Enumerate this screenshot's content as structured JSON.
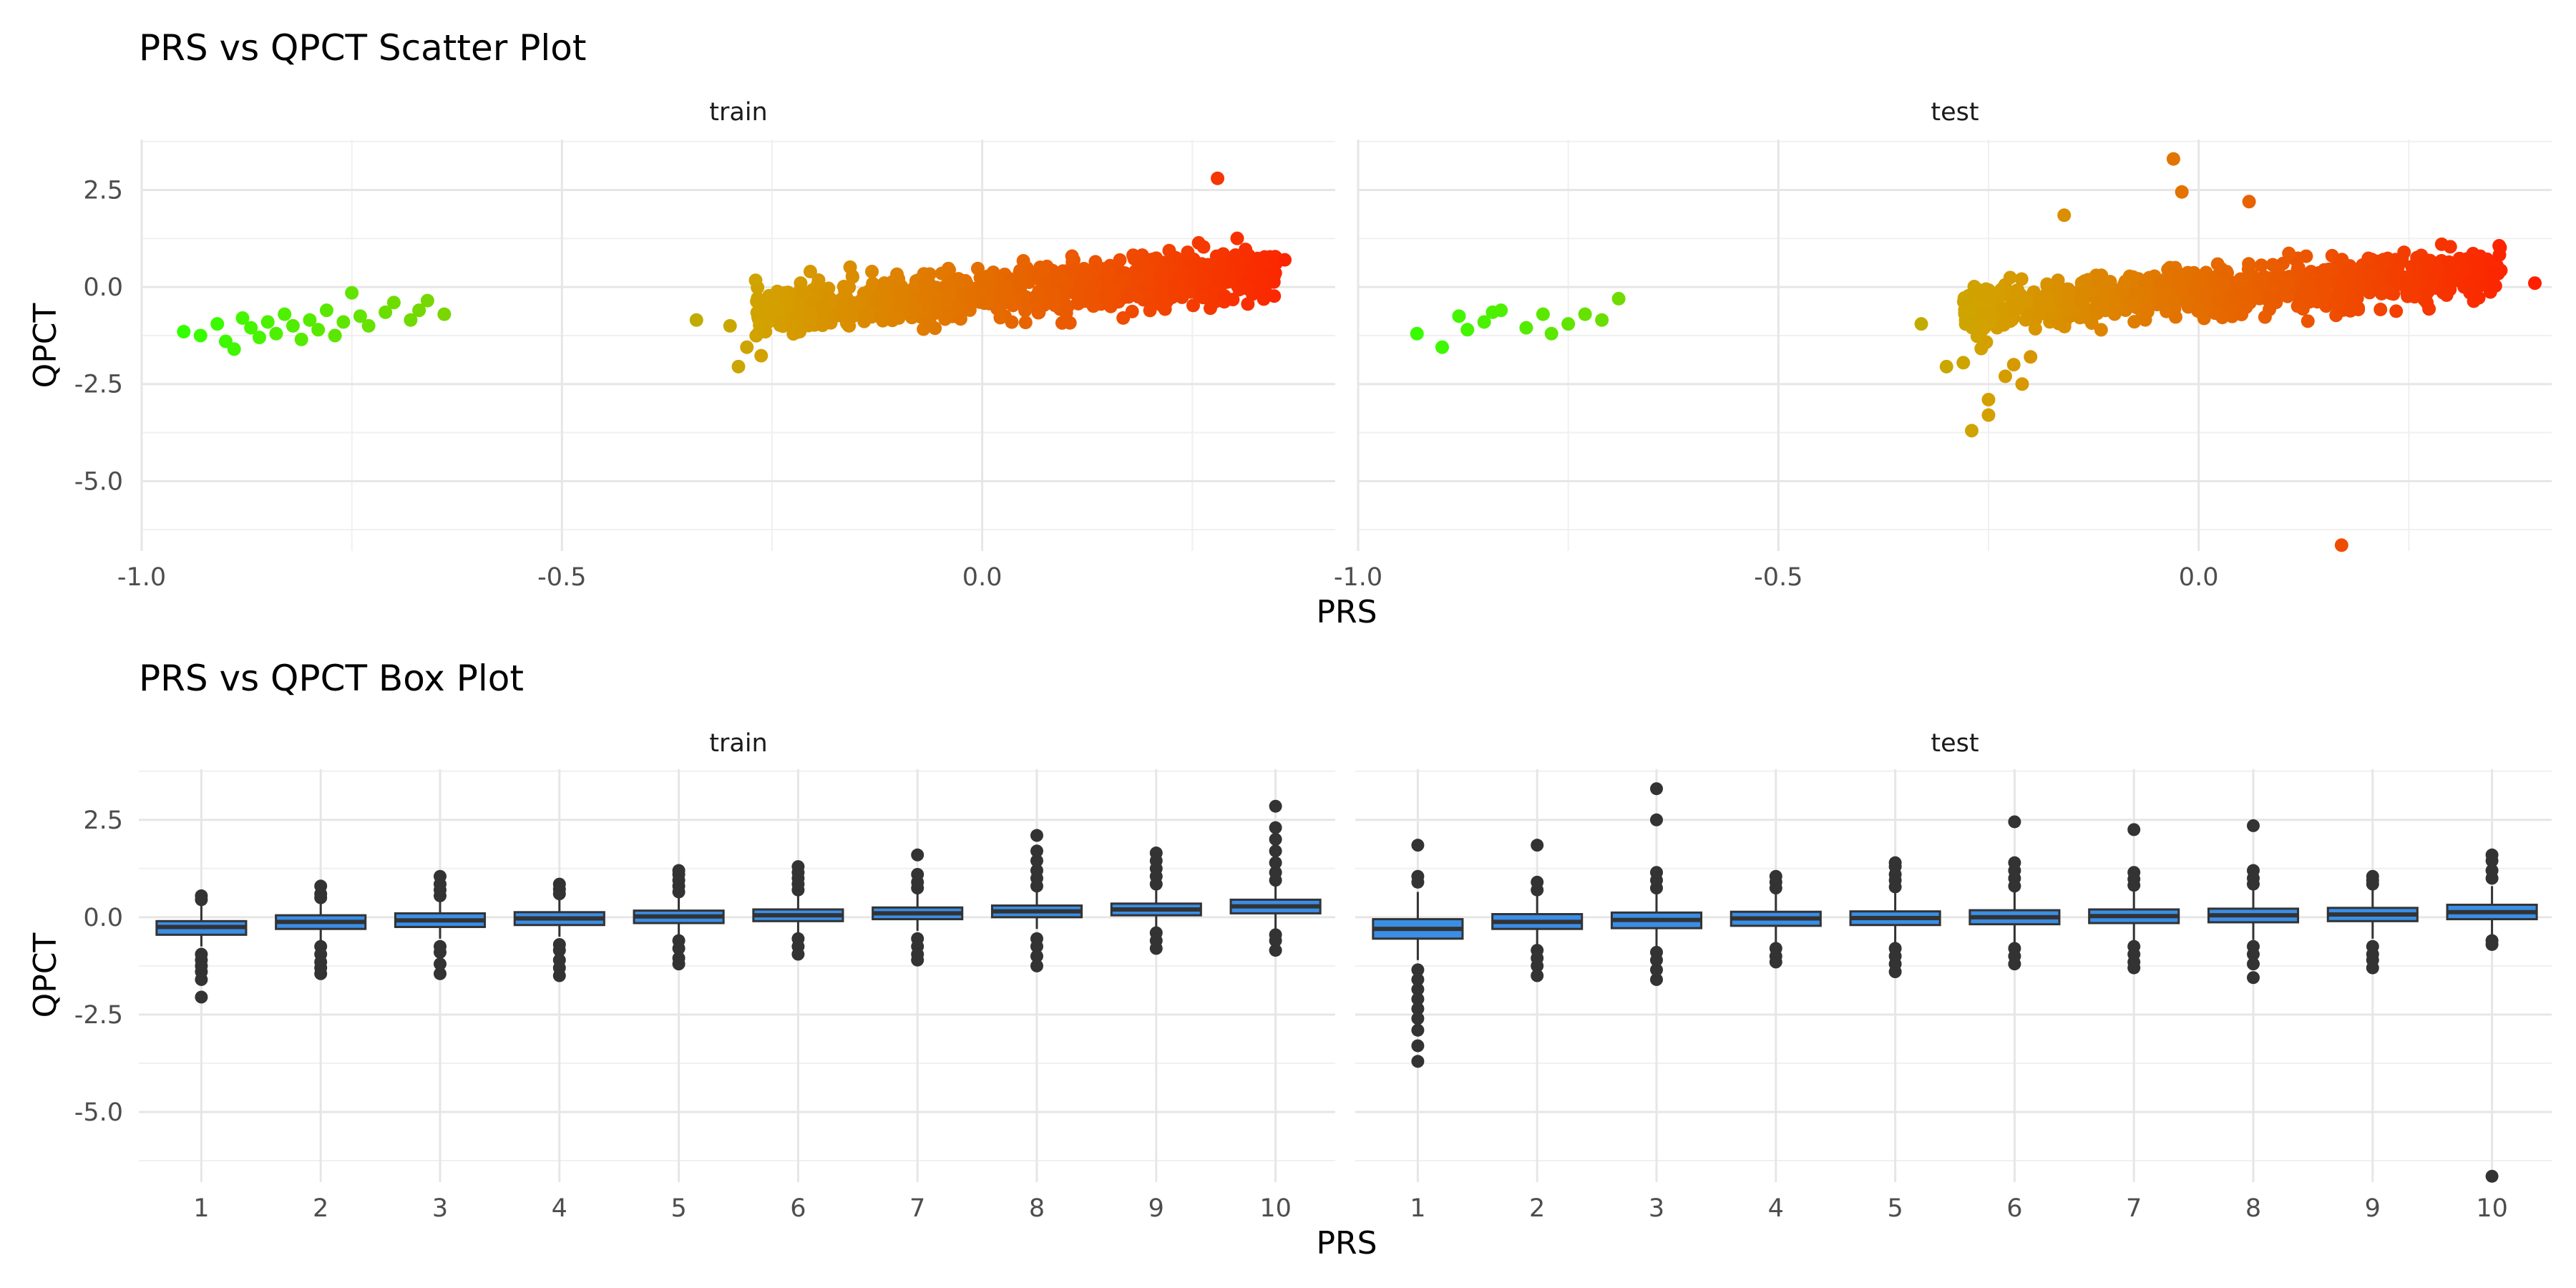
{
  "chart_data": [
    {
      "type": "scatter",
      "title": "PRS vs QPCT Scatter Plot",
      "xlabel": "PRS",
      "ylabel": "QPCT",
      "facets": [
        "train",
        "test"
      ],
      "xlim": [
        -1.0,
        0.42
      ],
      "ylim": [
        -6.8,
        3.8
      ],
      "x_ticks": [
        -1.0,
        -0.5,
        0.0
      ],
      "x_tick_labels": [
        "-1.0",
        "-0.5",
        "0.0"
      ],
      "y_ticks": [
        2.5,
        0.0,
        -2.5,
        -5.0
      ],
      "y_tick_labels": [
        "2.5",
        "0.0",
        "-2.5",
        "-5.0"
      ],
      "color_by": "PRS",
      "color_low": "#33ff00",
      "color_mid": "#d4a000",
      "color_high": "#ff1a00",
      "grid": true,
      "legend": "none",
      "series": [
        {
          "facet": "train",
          "points": [
            [
              -0.95,
              -1.15
            ],
            [
              -0.93,
              -1.25
            ],
            [
              -0.91,
              -0.95
            ],
            [
              -0.9,
              -1.4
            ],
            [
              -0.89,
              -1.6
            ],
            [
              -0.88,
              -0.8
            ],
            [
              -0.87,
              -1.05
            ],
            [
              -0.86,
              -1.3
            ],
            [
              -0.85,
              -0.9
            ],
            [
              -0.84,
              -1.2
            ],
            [
              -0.83,
              -0.7
            ],
            [
              -0.82,
              -1.0
            ],
            [
              -0.81,
              -1.35
            ],
            [
              -0.8,
              -0.85
            ],
            [
              -0.79,
              -1.1
            ],
            [
              -0.78,
              -0.6
            ],
            [
              -0.77,
              -1.25
            ],
            [
              -0.76,
              -0.9
            ],
            [
              -0.75,
              -0.15
            ],
            [
              -0.74,
              -0.75
            ],
            [
              -0.73,
              -1.0
            ],
            [
              -0.71,
              -0.65
            ],
            [
              -0.7,
              -0.4
            ],
            [
              -0.68,
              -0.85
            ],
            [
              -0.67,
              -0.6
            ],
            [
              -0.66,
              -0.35
            ],
            [
              -0.64,
              -0.7
            ],
            [
              -0.34,
              -0.85
            ],
            [
              -0.3,
              -1.0
            ],
            [
              -0.29,
              -2.05
            ],
            [
              -0.28,
              -1.55
            ],
            [
              -0.26,
              -0.5
            ],
            [
              0.28,
              2.8
            ],
            [
              0.33,
              0.15
            ],
            [
              0.35,
              0.75
            ],
            [
              0.36,
              0.7
            ]
          ],
          "dense_clouds": [
            {
              "x_range": [
                -0.27,
                0.35
              ],
              "y_at_x0": -0.2,
              "slope": 1.8,
              "spread": 0.9,
              "n": 900
            }
          ]
        },
        {
          "facet": "test",
          "points": [
            [
              -0.93,
              -1.2
            ],
            [
              -0.9,
              -1.55
            ],
            [
              -0.88,
              -0.75
            ],
            [
              -0.87,
              -1.1
            ],
            [
              -0.85,
              -0.9
            ],
            [
              -0.84,
              -0.65
            ],
            [
              -0.83,
              -0.6
            ],
            [
              -0.8,
              -1.05
            ],
            [
              -0.78,
              -0.7
            ],
            [
              -0.77,
              -1.2
            ],
            [
              -0.75,
              -0.95
            ],
            [
              -0.73,
              -0.7
            ],
            [
              -0.71,
              -0.85
            ],
            [
              -0.69,
              -0.3
            ],
            [
              -0.33,
              -0.95
            ],
            [
              -0.3,
              -2.05
            ],
            [
              -0.28,
              -1.95
            ],
            [
              -0.27,
              -3.7
            ],
            [
              -0.25,
              -3.3
            ],
            [
              -0.25,
              -2.9
            ],
            [
              -0.23,
              -2.3
            ],
            [
              -0.22,
              -2.0
            ],
            [
              -0.21,
              -2.5
            ],
            [
              -0.2,
              -1.8
            ],
            [
              -0.16,
              1.85
            ],
            [
              -0.03,
              3.3
            ],
            [
              -0.02,
              2.45
            ],
            [
              0.06,
              2.2
            ],
            [
              0.17,
              -6.65
            ],
            [
              0.33,
              0.65
            ],
            [
              0.4,
              0.1
            ]
          ],
          "dense_clouds": [
            {
              "x_range": [
                -0.28,
                0.36
              ],
              "y_at_x0": -0.15,
              "slope": 1.5,
              "spread": 0.9,
              "n": 800
            }
          ]
        }
      ]
    },
    {
      "type": "box",
      "title": "PRS vs QPCT Box Plot",
      "xlabel": "PRS",
      "ylabel": "QPCT",
      "facets": [
        "train",
        "test"
      ],
      "categories": [
        "1",
        "2",
        "3",
        "4",
        "5",
        "6",
        "7",
        "8",
        "9",
        "10"
      ],
      "ylim": [
        -6.8,
        3.8
      ],
      "y_ticks": [
        2.5,
        0.0,
        -2.5,
        -5.0
      ],
      "y_tick_labels": [
        "2.5",
        "0.0",
        "-2.5",
        "-5.0"
      ],
      "box_fill": "#3a8ee6",
      "box_stroke": "#333333",
      "outlier_color": "#333333",
      "grid": true,
      "legend": "none",
      "series": [
        {
          "facet": "train",
          "boxes": [
            {
              "q1": -0.45,
              "median": -0.25,
              "q3": -0.1,
              "lo": -0.75,
              "hi": 0.35,
              "outliers": [
                0.45,
                0.55,
                -0.95,
                -1.1,
                -1.25,
                -1.4,
                -1.6,
                -2.05
              ]
            },
            {
              "q1": -0.3,
              "median": -0.12,
              "q3": 0.05,
              "lo": -0.6,
              "hi": 0.4,
              "outliers": [
                0.5,
                0.6,
                0.8,
                -0.75,
                -0.95,
                -1.15,
                -1.3,
                -1.45
              ]
            },
            {
              "q1": -0.25,
              "median": -0.08,
              "q3": 0.1,
              "lo": -0.55,
              "hi": 0.45,
              "outliers": [
                0.55,
                0.7,
                0.85,
                1.05,
                -0.75,
                -0.9,
                -1.2,
                -1.45
              ]
            },
            {
              "q1": -0.2,
              "median": -0.03,
              "q3": 0.13,
              "lo": -0.5,
              "hi": 0.5,
              "outliers": [
                0.6,
                0.72,
                0.85,
                -0.7,
                -0.85,
                -1.1,
                -1.3,
                -1.5
              ]
            },
            {
              "q1": -0.15,
              "median": 0.02,
              "q3": 0.17,
              "lo": -0.45,
              "hi": 0.55,
              "outliers": [
                0.65,
                0.8,
                0.95,
                1.1,
                1.2,
                -0.6,
                -0.8,
                -1.05,
                -1.2
              ]
            },
            {
              "q1": -0.1,
              "median": 0.05,
              "q3": 0.2,
              "lo": -0.4,
              "hi": 0.6,
              "outliers": [
                0.7,
                0.85,
                1.0,
                1.15,
                1.3,
                -0.55,
                -0.75,
                -0.95
              ]
            },
            {
              "q1": -0.05,
              "median": 0.1,
              "q3": 0.25,
              "lo": -0.35,
              "hi": 0.65,
              "outliers": [
                0.75,
                0.9,
                1.1,
                1.6,
                -0.55,
                -0.75,
                -0.95,
                -1.1
              ]
            },
            {
              "q1": 0.0,
              "median": 0.15,
              "q3": 0.3,
              "lo": -0.3,
              "hi": 0.7,
              "outliers": [
                0.8,
                1.0,
                1.2,
                1.45,
                1.7,
                2.1,
                -0.55,
                -0.75,
                -1.0,
                -1.25
              ]
            },
            {
              "q1": 0.05,
              "median": 0.2,
              "q3": 0.35,
              "lo": -0.25,
              "hi": 0.75,
              "outliers": [
                0.85,
                1.05,
                1.25,
                1.45,
                1.65,
                -0.4,
                -0.6,
                -0.8
              ]
            },
            {
              "q1": 0.1,
              "median": 0.28,
              "q3": 0.45,
              "lo": -0.3,
              "hi": 0.85,
              "outliers": [
                0.95,
                1.15,
                1.4,
                1.7,
                2.0,
                2.3,
                2.85,
                -0.45,
                -0.6,
                -0.85
              ]
            }
          ]
        },
        {
          "facet": "test",
          "boxes": [
            {
              "q1": -0.55,
              "median": -0.3,
              "q3": -0.05,
              "lo": -1.1,
              "hi": 0.65,
              "outliers": [
                0.9,
                1.05,
                1.85,
                -1.35,
                -1.6,
                -1.85,
                -2.1,
                -2.35,
                -2.6,
                -2.9,
                -3.3,
                -3.7
              ]
            },
            {
              "q1": -0.3,
              "median": -0.12,
              "q3": 0.08,
              "lo": -0.7,
              "hi": 0.55,
              "outliers": [
                0.7,
                0.9,
                1.85,
                -0.85,
                -1.05,
                -1.25,
                -1.5
              ]
            },
            {
              "q1": -0.28,
              "median": -0.07,
              "q3": 0.12,
              "lo": -0.75,
              "hi": 0.6,
              "outliers": [
                0.75,
                0.95,
                1.15,
                2.5,
                3.3,
                -0.9,
                -1.1,
                -1.35,
                -1.6
              ]
            },
            {
              "q1": -0.22,
              "median": -0.03,
              "q3": 0.14,
              "lo": -0.65,
              "hi": 0.6,
              "outliers": [
                0.75,
                0.9,
                1.05,
                -0.8,
                -1.0,
                -1.15
              ]
            },
            {
              "q1": -0.2,
              "median": -0.02,
              "q3": 0.15,
              "lo": -0.65,
              "hi": 0.62,
              "outliers": [
                0.78,
                0.95,
                1.1,
                1.3,
                1.4,
                -0.8,
                -1.0,
                -1.2,
                -1.4
              ]
            },
            {
              "q1": -0.18,
              "median": 0.0,
              "q3": 0.18,
              "lo": -0.65,
              "hi": 0.65,
              "outliers": [
                0.8,
                1.0,
                1.2,
                1.4,
                2.45,
                -0.8,
                -1.0,
                -1.2
              ]
            },
            {
              "q1": -0.15,
              "median": 0.03,
              "q3": 0.2,
              "lo": -0.6,
              "hi": 0.68,
              "outliers": [
                0.82,
                0.98,
                1.15,
                2.25,
                -0.75,
                -0.95,
                -1.15,
                -1.3
              ]
            },
            {
              "q1": -0.13,
              "median": 0.05,
              "q3": 0.22,
              "lo": -0.58,
              "hi": 0.7,
              "outliers": [
                0.85,
                1.0,
                1.2,
                2.35,
                -0.75,
                -0.95,
                -1.2,
                -1.55
              ]
            },
            {
              "q1": -0.1,
              "median": 0.07,
              "q3": 0.24,
              "lo": -0.55,
              "hi": 0.7,
              "outliers": [
                0.85,
                0.95,
                1.05,
                -0.75,
                -0.95,
                -1.1,
                -1.3
              ]
            },
            {
              "q1": -0.05,
              "median": 0.13,
              "q3": 0.32,
              "lo": -0.5,
              "hi": 0.8,
              "outliers": [
                1.0,
                1.2,
                1.45,
                1.6,
                -0.6,
                -0.7,
                -6.65
              ]
            }
          ]
        }
      ]
    }
  ]
}
